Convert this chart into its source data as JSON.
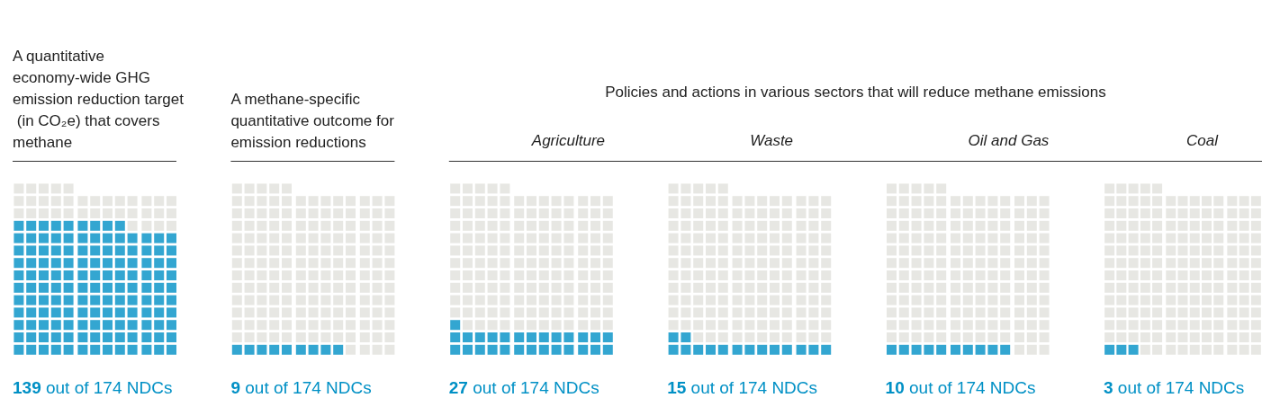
{
  "chart_data": {
    "type": "other",
    "categories": [
      "A quantitative economy-wide GHG emission reduction target (in CO₂e) that covers methane",
      "A methane-specific quantitative outcome for emission reductions",
      "Agriculture",
      "Waste",
      "Oil and Gas",
      "Coal"
    ],
    "series": [
      {
        "color": "#0090c5",
        "values": [
          139,
          9,
          27,
          15,
          10,
          3
        ],
        "value_labels": [
          "139",
          "9",
          "27",
          "15",
          "10",
          "3"
        ]
      },
      {
        "color": "#e1e1dc",
        "values": [
          174,
          174,
          174,
          174,
          174,
          174
        ],
        "value_labels": [
          "out of 174 NDCs",
          "out of 174 NDCs",
          "out of 174 NDCs",
          "out of 174 NDCs",
          "out of 174 NDCs",
          "out of 174 NDCs"
        ]
      }
    ],
    "annotations": [
      "Policies and actions in various sectors that will reduce methane emissions"
    ]
  }
}
